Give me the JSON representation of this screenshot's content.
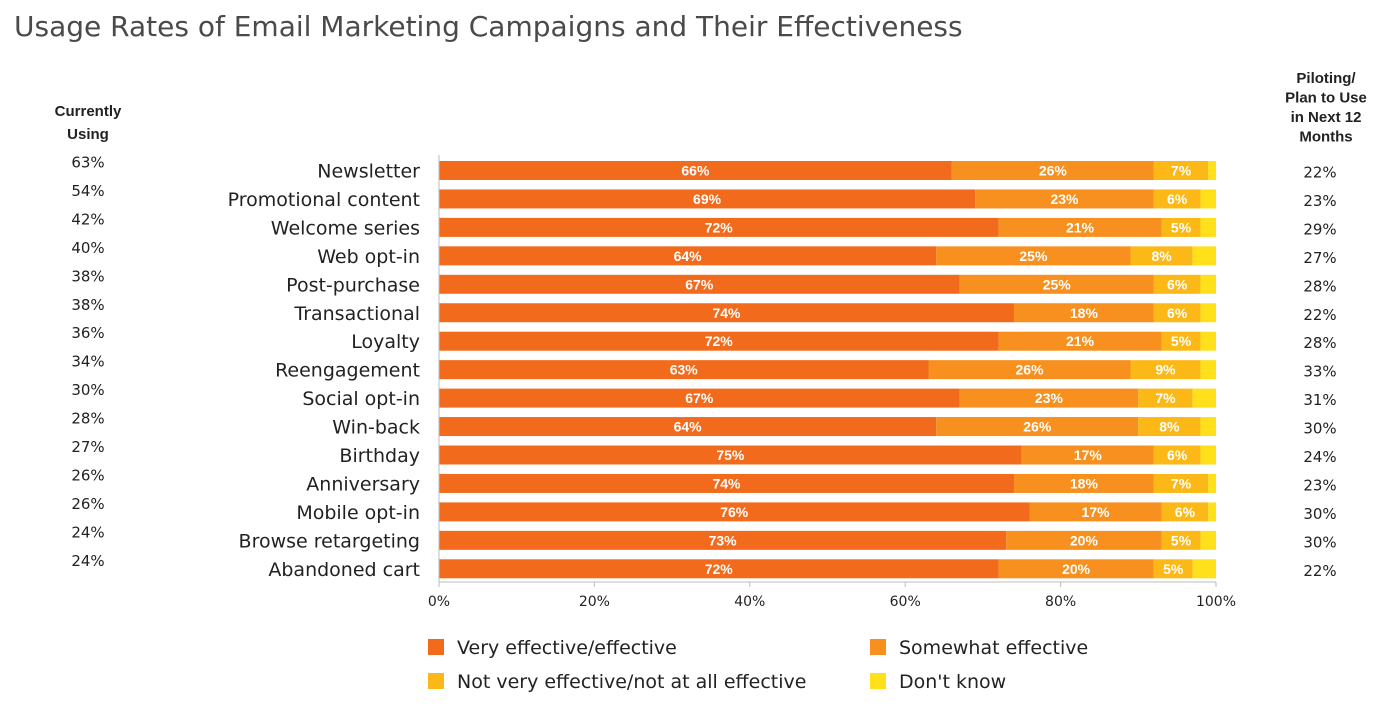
{
  "chart_data": {
    "type": "bar",
    "orientation": "horizontal",
    "stacked": true,
    "title": "Usage Rates of Email Marketing Campaigns and Their Effectiveness",
    "xlabel": "",
    "ylabel": "",
    "xlim": [
      0,
      100
    ],
    "x_ticks": [
      "0%",
      "20%",
      "40%",
      "60%",
      "80%",
      "100%"
    ],
    "grid": false,
    "legend_position": "bottom",
    "categories": [
      "Newsletter",
      "Promotional content",
      "Welcome series",
      "Web opt-in",
      "Post-purchase",
      "Transactional",
      "Loyalty",
      "Reengagement",
      "Social opt-in",
      "Win-back",
      "Birthday",
      "Anniversary",
      "Mobile opt-in",
      "Browse retargeting",
      "Abandoned cart"
    ],
    "series": [
      {
        "name": "Very effective/effective",
        "color": "#f26b1d",
        "values": [
          66,
          69,
          72,
          64,
          67,
          74,
          72,
          63,
          67,
          64,
          75,
          74,
          76,
          73,
          72
        ]
      },
      {
        "name": "Somewhat effective",
        "color": "#f7901e",
        "values": [
          26,
          23,
          21,
          25,
          25,
          18,
          21,
          26,
          23,
          26,
          17,
          18,
          17,
          20,
          20
        ]
      },
      {
        "name": "Not very effective/not at all effective",
        "color": "#fbb817",
        "values": [
          7,
          6,
          5,
          8,
          6,
          6,
          5,
          9,
          7,
          8,
          6,
          7,
          6,
          5,
          5
        ]
      },
      {
        "name": "Don't know",
        "color": "#ffe01a",
        "values": [
          1,
          2,
          2,
          3,
          2,
          2,
          2,
          2,
          3,
          2,
          2,
          1,
          1,
          2,
          3
        ]
      }
    ],
    "segment_labels": [
      [
        "66%",
        "26%",
        "7%"
      ],
      [
        "69%",
        "23%",
        "6%"
      ],
      [
        "72%",
        "21%",
        "5%"
      ],
      [
        "64%",
        "25%",
        "8%"
      ],
      [
        "67%",
        "25%",
        "6%"
      ],
      [
        "74%",
        "18%",
        "6%"
      ],
      [
        "72%",
        "21%",
        "5%"
      ],
      [
        "63%",
        "26%",
        "9%"
      ],
      [
        "67%",
        "23%",
        "7%"
      ],
      [
        "64%",
        "26%",
        "8%"
      ],
      [
        "75%",
        "17%",
        "6%"
      ],
      [
        "74%",
        "18%",
        "7%"
      ],
      [
        "76%",
        "17%",
        "6%"
      ],
      [
        "73%",
        "20%",
        "5%"
      ],
      [
        "72%",
        "20%",
        "5%"
      ]
    ],
    "currently_using": {
      "header_lines": [
        "Currently",
        "Using"
      ],
      "values": [
        "63%",
        "54%",
        "42%",
        "40%",
        "38%",
        "38%",
        "36%",
        "34%",
        "30%",
        "28%",
        "27%",
        "26%",
        "26%",
        "24%",
        "24%"
      ]
    },
    "piloting": {
      "header_lines": [
        "Piloting/",
        "Plan to Use",
        "in Next 12",
        "Months"
      ],
      "values": [
        "22%",
        "23%",
        "29%",
        "27%",
        "28%",
        "22%",
        "28%",
        "33%",
        "31%",
        "30%",
        "24%",
        "23%",
        "30%",
        "30%",
        "22%"
      ]
    }
  }
}
